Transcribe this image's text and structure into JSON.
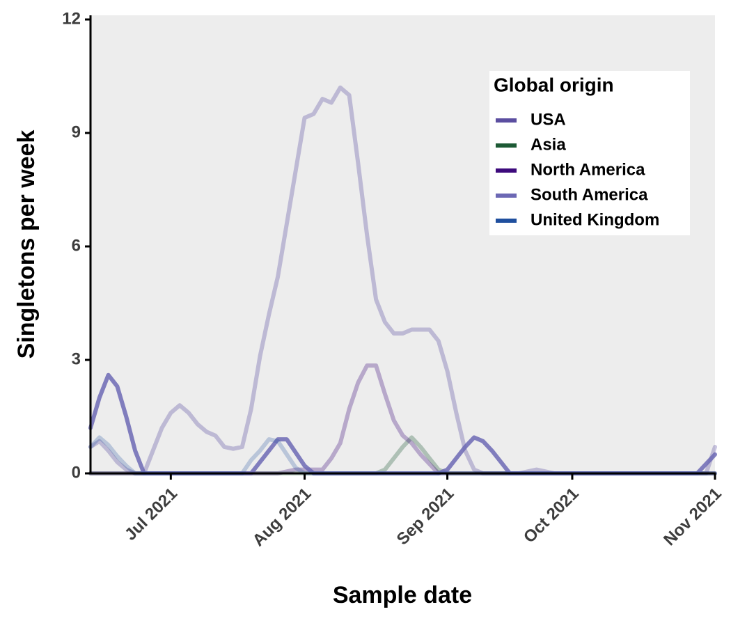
{
  "chart_data": {
    "type": "line",
    "ylabel": "Singletons per week",
    "xlabel": "Sample date",
    "legend_title": "Global origin",
    "legend": "upper right",
    "categories": [
      null,
      null,
      null,
      null,
      null,
      null,
      null,
      null,
      null,
      "Jul 2021",
      null,
      null,
      null,
      null,
      null,
      null,
      null,
      null,
      null,
      null,
      null,
      null,
      null,
      null,
      "Aug 2021",
      null,
      null,
      null,
      null,
      null,
      null,
      null,
      null,
      null,
      null,
      null,
      null,
      null,
      null,
      null,
      "Sep 2021",
      null,
      null,
      null,
      null,
      null,
      null,
      null,
      null,
      null,
      null,
      null,
      null,
      null,
      "Oct 2021",
      null,
      null,
      null,
      null,
      null,
      null,
      null,
      null,
      null,
      null,
      null,
      null,
      null,
      null,
      null,
      "Nov 2021"
    ],
    "ylim": [
      0,
      12
    ],
    "yticks": [
      0,
      3,
      6,
      9,
      12
    ],
    "series": [
      {
        "name": "USA",
        "color": "#5b4ea0",
        "alpha": 0.33,
        "values": [
          0.7,
          0.85,
          0.6,
          0.3,
          0.1,
          0,
          0,
          0.6,
          1.2,
          1.6,
          1.8,
          1.6,
          1.3,
          1.1,
          1.0,
          0.7,
          0.65,
          0.7,
          1.7,
          3.1,
          4.2,
          5.2,
          6.6,
          8.0,
          9.4,
          9.5,
          9.9,
          9.8,
          10.2,
          10.0,
          8.2,
          6.3,
          4.6,
          4.0,
          3.7,
          3.7,
          3.8,
          3.8,
          3.8,
          3.5,
          2.7,
          1.6,
          0.6,
          0.1,
          0,
          0,
          0,
          0,
          0,
          0.05,
          0.1,
          0.05,
          0,
          0,
          0,
          0,
          0,
          0,
          0,
          0,
          0,
          0,
          0,
          0,
          0,
          0,
          0,
          0,
          0,
          0,
          0.7
        ]
      },
      {
        "name": "Asia",
        "color": "#1d5a35",
        "alpha": 0.3,
        "values": [
          0,
          0,
          0,
          0,
          0,
          0,
          0,
          0,
          0,
          0,
          0,
          0,
          0,
          0,
          0,
          0,
          0,
          0,
          0,
          0,
          0,
          0,
          0,
          0,
          0,
          0,
          0,
          0,
          0,
          0,
          0,
          0,
          0,
          0.1,
          0.4,
          0.7,
          0.95,
          0.7,
          0.4,
          0.1,
          0,
          0,
          0,
          0,
          0,
          0,
          0,
          0,
          0,
          0,
          0,
          0,
          0,
          0,
          0,
          0,
          0,
          0,
          0,
          0,
          0,
          0,
          0,
          0,
          0,
          0,
          0,
          0,
          0,
          0,
          0
        ]
      },
      {
        "name": "North America",
        "color": "#3d0a7c",
        "alpha": 0.3,
        "values": [
          0,
          0,
          0,
          0,
          0,
          0,
          0,
          0,
          0,
          0,
          0,
          0,
          0,
          0,
          0,
          0,
          0,
          0,
          0,
          0,
          0,
          0,
          0.05,
          0.1,
          0.1,
          0.1,
          0.1,
          0.4,
          0.8,
          1.7,
          2.4,
          2.85,
          2.85,
          2.1,
          1.4,
          1.0,
          0.8,
          0.5,
          0.25,
          0,
          0,
          0,
          0,
          0,
          0,
          0,
          0,
          0,
          0,
          0,
          0,
          0,
          0,
          0,
          0,
          0,
          0,
          0,
          0,
          0,
          0,
          0,
          0,
          0,
          0,
          0,
          0,
          0,
          0,
          0,
          0
        ]
      },
      {
        "name": "South America",
        "color": "#6c68b4",
        "alpha": 0.85,
        "values": [
          1.2,
          2.0,
          2.6,
          2.3,
          1.5,
          0.6,
          0,
          0,
          0,
          0,
          0,
          0,
          0,
          0,
          0,
          0,
          0,
          0,
          0,
          0.3,
          0.6,
          0.9,
          0.9,
          0.55,
          0.2,
          0,
          0,
          0,
          0,
          0,
          0,
          0,
          0,
          0,
          0,
          0,
          0,
          0,
          0,
          0,
          0.1,
          0.4,
          0.7,
          0.95,
          0.85,
          0.6,
          0.3,
          0,
          0,
          0,
          0,
          0,
          0,
          0,
          0,
          0,
          0,
          0,
          0,
          0,
          0,
          0,
          0,
          0,
          0,
          0,
          0,
          0,
          0,
          0.25,
          0.5
        ]
      },
      {
        "name": "United Kingdom",
        "color": "#1f4f9e",
        "alpha": 0.25,
        "values": [
          0.7,
          0.95,
          0.75,
          0.45,
          0.2,
          0,
          0,
          0,
          0,
          0,
          0,
          0,
          0,
          0,
          0,
          0,
          0,
          0,
          0.35,
          0.6,
          0.9,
          0.85,
          0.5,
          0.15,
          0,
          0,
          0,
          0,
          0,
          0,
          0,
          0,
          0,
          0,
          0,
          0,
          0,
          0,
          0,
          0,
          0,
          0,
          0,
          0,
          0,
          0,
          0,
          0,
          0,
          0,
          0,
          0,
          0,
          0,
          0,
          0,
          0,
          0,
          0,
          0,
          0,
          0,
          0,
          0,
          0,
          0,
          0,
          0,
          0,
          0,
          0
        ]
      }
    ]
  }
}
